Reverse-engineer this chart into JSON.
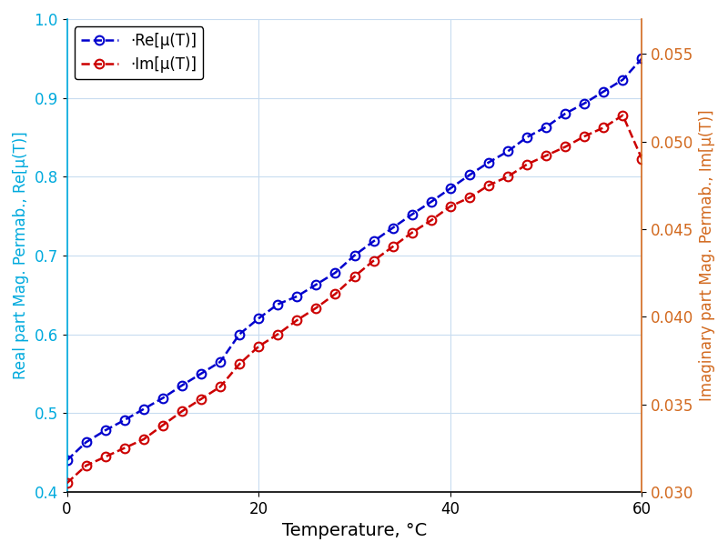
{
  "title": "",
  "xlabel": "Temperature, °C",
  "ylabel_left": "Real part Mag. Permab., Re[μ(T)]",
  "ylabel_right": "Imaginary part Mag. Permab., Im[μ(T)]",
  "x": [
    0,
    2,
    4,
    6,
    8,
    10,
    12,
    14,
    16,
    18,
    20,
    22,
    24,
    26,
    28,
    30,
    32,
    34,
    36,
    38,
    40,
    42,
    44,
    46,
    48,
    50,
    52,
    54,
    56,
    58,
    60
  ],
  "re_mu": [
    0.44,
    0.463,
    0.478,
    0.491,
    0.505,
    0.519,
    0.535,
    0.55,
    0.565,
    0.6,
    0.62,
    0.638,
    0.648,
    0.663,
    0.678,
    0.7,
    0.718,
    0.735,
    0.752,
    0.768,
    0.785,
    0.802,
    0.818,
    0.832,
    0.85,
    0.863,
    0.88,
    0.893,
    0.908,
    0.923,
    0.95
  ],
  "im_mu": [
    0.0305,
    0.0315,
    0.032,
    0.0325,
    0.033,
    0.0338,
    0.0346,
    0.0353,
    0.036,
    0.0373,
    0.0383,
    0.039,
    0.0398,
    0.0405,
    0.0413,
    0.0423,
    0.0432,
    0.044,
    0.0448,
    0.0455,
    0.0463,
    0.0468,
    0.0475,
    0.048,
    0.0487,
    0.0492,
    0.0497,
    0.0503,
    0.0508,
    0.0515,
    0.049
  ],
  "color_blue": "#0000CD",
  "color_red": "#CC0000",
  "color_left_axis": "#00AADD",
  "color_right_axis": "#D2691E",
  "xlim": [
    0,
    60
  ],
  "ylim_left": [
    0.4,
    1.0
  ],
  "ylim_right": [
    0.03,
    0.057
  ],
  "yticks_left": [
    0.4,
    0.5,
    0.6,
    0.7,
    0.8,
    0.9,
    1.0
  ],
  "yticks_right": [
    0.03,
    0.035,
    0.04,
    0.045,
    0.05,
    0.055
  ],
  "xticks": [
    0,
    20,
    40,
    60
  ],
  "legend_label_re": "·Re[μ(T)]",
  "legend_label_im": "·Im[μ(T)]",
  "marker": "o",
  "linestyle": "--",
  "markersize": 7,
  "linewidth": 1.8,
  "grid_color": "#C8DCF0",
  "xlabel_fontsize": 14,
  "ylabel_fontsize": 12,
  "tick_fontsize": 12,
  "legend_fontsize": 12
}
